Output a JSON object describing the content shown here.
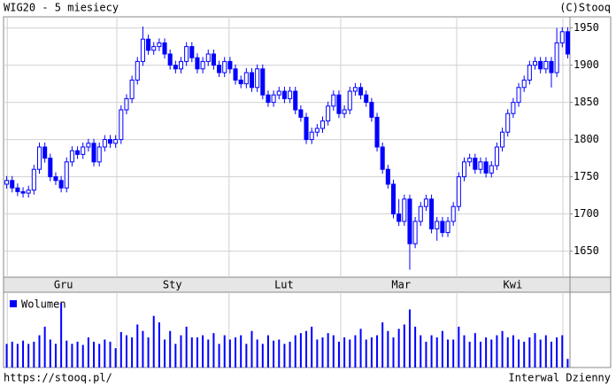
{
  "chart_data": {
    "type": "candlestick",
    "title": "WIG20 - 5 miesiecy",
    "source": "(C)Stooq",
    "footer_left": "https://stooq.pl/",
    "footer_right": "Interwal Dzienny",
    "color": "#0000ff",
    "open": [
      1740,
      1745,
      1735,
      1730,
      1728,
      1732,
      1760,
      1790,
      1775,
      1750,
      1745,
      1735,
      1770,
      1785,
      1780,
      1790,
      1795,
      1770,
      1790,
      1800,
      1795,
      1800,
      1840,
      1855,
      1880,
      1905,
      1935,
      1920,
      1925,
      1930,
      1915,
      1900,
      1895,
      1905,
      1925,
      1910,
      1895,
      1905,
      1915,
      1900,
      1890,
      1905,
      1895,
      1880,
      1875,
      1890,
      1870,
      1895,
      1860,
      1850,
      1860,
      1865,
      1855,
      1865,
      1840,
      1830,
      1800,
      1810,
      1815,
      1825,
      1845,
      1860,
      1835,
      1840,
      1865,
      1870,
      1860,
      1850,
      1830,
      1790,
      1760,
      1740,
      1700,
      1690,
      1720,
      1660,
      1690,
      1710,
      1720,
      1680,
      1690,
      1675,
      1690,
      1710,
      1750,
      1770,
      1775,
      1760,
      1770,
      1755,
      1765,
      1790,
      1810,
      1835,
      1850,
      1870,
      1880,
      1900,
      1905,
      1895,
      1905,
      1890,
      1930,
      1945
    ],
    "high": [
      1751,
      1751,
      1741,
      1736,
      1738,
      1766,
      1796,
      1796,
      1781,
      1756,
      1751,
      1776,
      1791,
      1791,
      1796,
      1801,
      1801,
      1796,
      1806,
      1806,
      1806,
      1846,
      1861,
      1886,
      1911,
      1952,
      1941,
      1931,
      1936,
      1936,
      1921,
      1906,
      1911,
      1931,
      1931,
      1916,
      1911,
      1921,
      1921,
      1906,
      1911,
      1911,
      1901,
      1886,
      1896,
      1896,
      1901,
      1901,
      1866,
      1866,
      1871,
      1871,
      1871,
      1871,
      1846,
      1836,
      1816,
      1821,
      1831,
      1851,
      1866,
      1866,
      1846,
      1871,
      1876,
      1876,
      1866,
      1856,
      1836,
      1796,
      1766,
      1746,
      1720,
      1726,
      1726,
      1696,
      1716,
      1726,
      1726,
      1696,
      1696,
      1696,
      1716,
      1756,
      1776,
      1781,
      1781,
      1776,
      1776,
      1771,
      1796,
      1816,
      1841,
      1856,
      1876,
      1886,
      1906,
      1911,
      1911,
      1911,
      1911,
      1950,
      1951,
      1951
    ],
    "low": [
      1734,
      1729,
      1724,
      1722,
      1722,
      1726,
      1754,
      1769,
      1744,
      1739,
      1729,
      1729,
      1764,
      1774,
      1774,
      1784,
      1764,
      1764,
      1784,
      1789,
      1789,
      1794,
      1834,
      1849,
      1874,
      1899,
      1914,
      1914,
      1919,
      1909,
      1894,
      1889,
      1889,
      1899,
      1904,
      1889,
      1889,
      1899,
      1894,
      1884,
      1884,
      1889,
      1874,
      1869,
      1869,
      1864,
      1864,
      1854,
      1844,
      1844,
      1854,
      1849,
      1849,
      1834,
      1824,
      1794,
      1794,
      1804,
      1809,
      1819,
      1839,
      1829,
      1829,
      1834,
      1859,
      1854,
      1844,
      1824,
      1784,
      1754,
      1734,
      1694,
      1684,
      1684,
      1625,
      1654,
      1684,
      1704,
      1674,
      1664,
      1669,
      1669,
      1684,
      1704,
      1744,
      1764,
      1754,
      1754,
      1749,
      1749,
      1759,
      1784,
      1804,
      1829,
      1844,
      1864,
      1874,
      1894,
      1889,
      1889,
      1870,
      1884,
      1924,
      1909
    ],
    "close": [
      1745,
      1735,
      1730,
      1728,
      1732,
      1760,
      1790,
      1775,
      1750,
      1745,
      1735,
      1770,
      1785,
      1780,
      1790,
      1795,
      1770,
      1790,
      1800,
      1795,
      1800,
      1840,
      1855,
      1880,
      1905,
      1935,
      1920,
      1925,
      1930,
      1915,
      1900,
      1895,
      1905,
      1925,
      1910,
      1895,
      1905,
      1915,
      1900,
      1890,
      1905,
      1895,
      1880,
      1875,
      1890,
      1870,
      1895,
      1860,
      1850,
      1860,
      1865,
      1855,
      1865,
      1840,
      1830,
      1800,
      1810,
      1815,
      1825,
      1845,
      1860,
      1835,
      1840,
      1865,
      1870,
      1860,
      1850,
      1830,
      1790,
      1760,
      1740,
      1700,
      1690,
      1720,
      1660,
      1690,
      1710,
      1720,
      1680,
      1690,
      1675,
      1690,
      1710,
      1750,
      1770,
      1775,
      1760,
      1770,
      1755,
      1765,
      1790,
      1810,
      1835,
      1850,
      1870,
      1880,
      1900,
      1905,
      1895,
      1905,
      1890,
      1930,
      1945,
      1915
    ],
    "volume_legend": "Wolumen",
    "volume": [
      22,
      24,
      22,
      25,
      22,
      24,
      30,
      38,
      26,
      22,
      60,
      25,
      22,
      24,
      21,
      28,
      24,
      22,
      26,
      24,
      18,
      33,
      30,
      28,
      40,
      34,
      28,
      48,
      42,
      26,
      34,
      22,
      30,
      38,
      28,
      28,
      30,
      26,
      32,
      22,
      30,
      26,
      28,
      30,
      22,
      34,
      26,
      22,
      30,
      25,
      26,
      22,
      24,
      30,
      32,
      34,
      38,
      26,
      28,
      32,
      30,
      24,
      28,
      26,
      30,
      36,
      26,
      28,
      30,
      42,
      34,
      28,
      36,
      40,
      54,
      38,
      30,
      24,
      30,
      28,
      34,
      26,
      26,
      38,
      30,
      24,
      32,
      24,
      28,
      26,
      30,
      34,
      28,
      30,
      26,
      24,
      28,
      32,
      26,
      30,
      24,
      28,
      30,
      8
    ],
    "vlim": [
      0,
      70
    ],
    "ylim": [
      1615,
      1965
    ],
    "yticks": [
      1650,
      1700,
      1750,
      1800,
      1850,
      1900,
      1950
    ],
    "xlim": [
      -0.5,
      103.5
    ],
    "xticks": [
      {
        "value": 10.5,
        "label": "Gru"
      },
      {
        "value": 30.5,
        "label": "Sty"
      },
      {
        "value": 51,
        "label": "Lut"
      },
      {
        "value": 72.5,
        "label": "Mar"
      },
      {
        "value": 93,
        "label": "Kwi"
      }
    ],
    "xgrid": [
      0.2,
      20.3,
      40.9,
      61.4,
      82.7,
      102.2
    ],
    "grid": true
  }
}
